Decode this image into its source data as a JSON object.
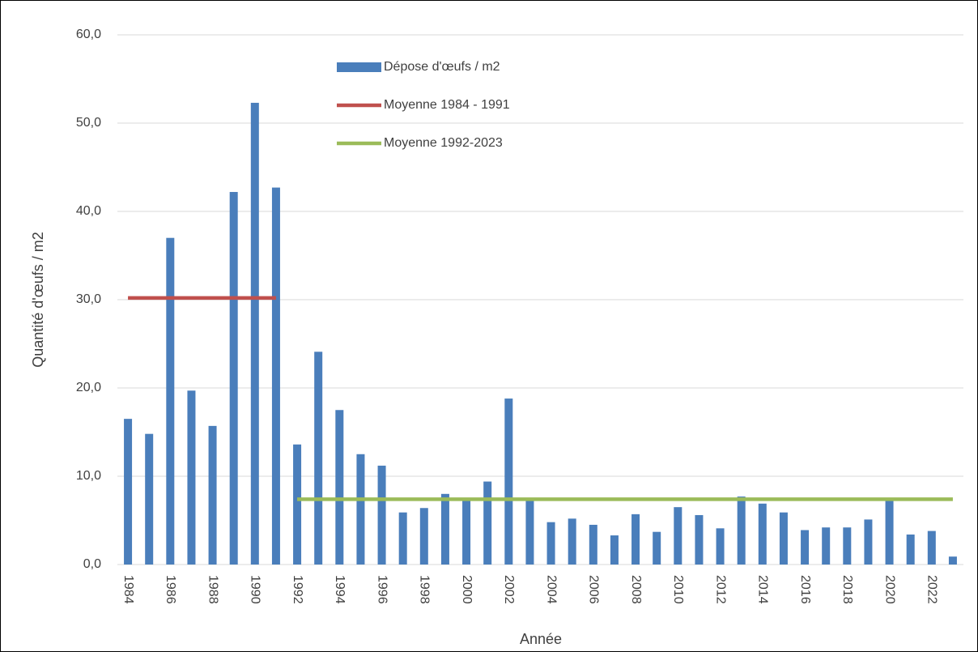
{
  "chart_data": {
    "type": "bar",
    "x_label": "Année",
    "y_label": "Quantité d'œufs / m2",
    "categories": [
      1984,
      null,
      1986,
      null,
      1988,
      null,
      1990,
      null,
      1992,
      null,
      1994,
      null,
      1996,
      null,
      1998,
      null,
      2000,
      null,
      2002,
      null,
      2004,
      null,
      2006,
      null,
      2008,
      null,
      2010,
      null,
      2012,
      null,
      2014,
      null,
      2016,
      null,
      2018,
      null,
      2020,
      null,
      2022,
      null
    ],
    "series": [
      {
        "name": "Dépose d'œufs / m2",
        "type": "bar",
        "color": "#4a7ebb",
        "values": [
          16.5,
          14.8,
          37.0,
          19.7,
          15.7,
          42.2,
          52.3,
          42.7,
          13.6,
          24.1,
          17.5,
          12.5,
          11.2,
          5.9,
          6.4,
          8.0,
          7.5,
          9.4,
          18.8,
          7.3,
          4.8,
          5.2,
          4.5,
          3.3,
          5.7,
          3.7,
          6.5,
          5.6,
          4.1,
          7.7,
          6.9,
          5.9,
          3.9,
          4.2,
          4.2,
          5.1,
          7.4,
          3.4,
          3.8,
          0.9
        ]
      },
      {
        "name": "Moyenne 1984 - 1991",
        "type": "line",
        "color": "#c0504d",
        "values": [
          30.2,
          30.2,
          30.2,
          30.2,
          30.2,
          30.2,
          30.2,
          30.2,
          null,
          null,
          null,
          null,
          null,
          null,
          null,
          null,
          null,
          null,
          null,
          null,
          null,
          null,
          null,
          null,
          null,
          null,
          null,
          null,
          null,
          null,
          null,
          null,
          null,
          null,
          null,
          null,
          null,
          null,
          null,
          null
        ]
      },
      {
        "name": "Moyenne 1992-2023",
        "type": "line",
        "color": "#9bbb59",
        "values": [
          null,
          null,
          null,
          null,
          null,
          null,
          null,
          null,
          7.4,
          7.4,
          7.4,
          7.4,
          7.4,
          7.4,
          7.4,
          7.4,
          7.4,
          7.4,
          7.4,
          7.4,
          7.4,
          7.4,
          7.4,
          7.4,
          7.4,
          7.4,
          7.4,
          7.4,
          7.4,
          7.4,
          7.4,
          7.4,
          7.4,
          7.4,
          7.4,
          7.4,
          7.4,
          7.4,
          7.4,
          7.4
        ]
      }
    ],
    "ylim": [
      0,
      60
    ],
    "yticks": [
      {
        "value": 0,
        "label": "0,0"
      },
      {
        "value": 10,
        "label": "10,0"
      },
      {
        "value": 20,
        "label": "20,0"
      },
      {
        "value": 30,
        "label": "30,0"
      },
      {
        "value": 40,
        "label": "40,0"
      },
      {
        "value": 50,
        "label": "50,0"
      },
      {
        "value": 60,
        "label": "60,0"
      }
    ],
    "grid": true
  }
}
